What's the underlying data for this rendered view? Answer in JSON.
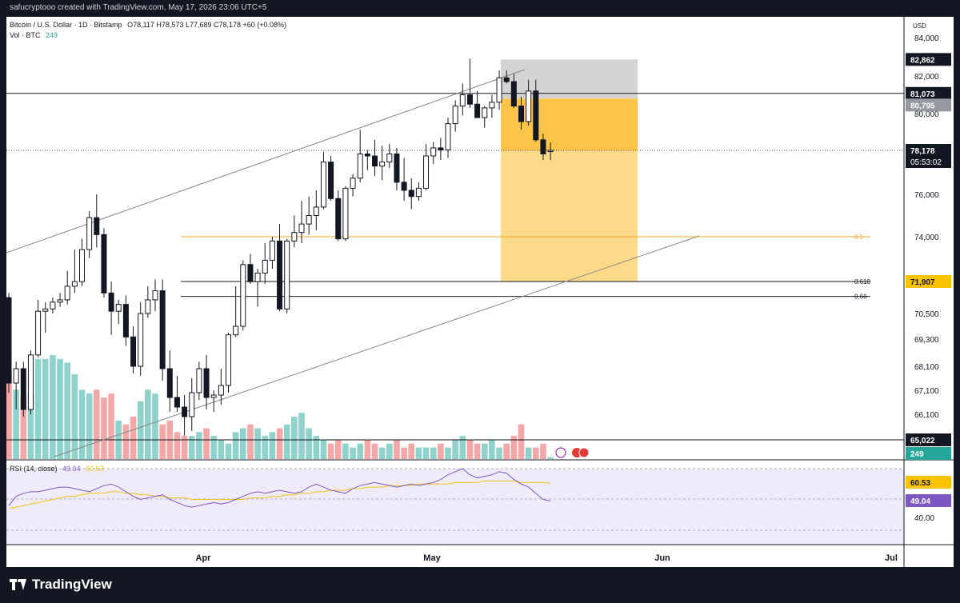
{
  "credit": "safucryptooo created with TradingView.com, May 17, 2026 23:06 UTC+5",
  "header": {
    "symbol": "Bitcoin / U.S. Dollar · 1D · Bitstamp",
    "ohlc": "O78,117 H78,573 L77,689 C78,178 +60 (+0.08%)",
    "vol_label": "Vol · BTC",
    "vol_value": "249"
  },
  "rsi_legend": {
    "label": "RSI (14, close)",
    "rsi": "49.04",
    "ma": "60.53"
  },
  "brand": "TradingView",
  "chart_data": {
    "type": "candlestick",
    "currency": "USD",
    "price_ticks": [
      "84,000",
      "82,000",
      "80,000",
      "76,000",
      "74,000",
      "70,500",
      "69,300",
      "68,100",
      "67,100",
      "66,100"
    ],
    "rsi_ticks": [
      "40.00"
    ],
    "x_labels": [
      "Apr",
      "May",
      "Jun",
      "Jul"
    ],
    "price_badges": {
      "target_top": "82,862",
      "hline_81073": "81,073",
      "entry": "80,795",
      "last": "78,178",
      "countdown": "05:53:02",
      "stop_target": "71,907",
      "hline_65022": "65,022",
      "volume": "249",
      "rsi_ma": "60.53",
      "rsi": "49.04"
    },
    "fib_levels": [
      {
        "label": "0.5",
        "value": 74000,
        "color": "#f5a623"
      },
      {
        "label": "0.618",
        "value": 71907,
        "color": "#131722"
      },
      {
        "label": "0.66",
        "value": 71250,
        "color": "#131722"
      }
    ],
    "horizontal_lines": [
      81073,
      65022
    ],
    "position_tool": {
      "top": 82862,
      "entry": 80795,
      "bottom": 71907
    },
    "candles": [
      {
        "o": 71200,
        "h": 71400,
        "l": 67000,
        "c": 67400
      },
      {
        "o": 67400,
        "h": 68300,
        "l": 66300,
        "c": 68000
      },
      {
        "o": 68000,
        "h": 68300,
        "l": 66000,
        "c": 66300
      },
      {
        "o": 66300,
        "h": 68800,
        "l": 66100,
        "c": 68600
      },
      {
        "o": 68600,
        "h": 71100,
        "l": 68500,
        "c": 70600
      },
      {
        "o": 70600,
        "h": 71000,
        "l": 69600,
        "c": 70700
      },
      {
        "o": 70700,
        "h": 71200,
        "l": 70500,
        "c": 71000
      },
      {
        "o": 71000,
        "h": 71400,
        "l": 70800,
        "c": 71100
      },
      {
        "o": 71100,
        "h": 72400,
        "l": 70900,
        "c": 71700
      },
      {
        "o": 71700,
        "h": 73400,
        "l": 71400,
        "c": 71900
      },
      {
        "o": 71900,
        "h": 73900,
        "l": 71700,
        "c": 73400
      },
      {
        "o": 73400,
        "h": 75200,
        "l": 73000,
        "c": 74900
      },
      {
        "o": 74900,
        "h": 76000,
        "l": 73500,
        "c": 74100
      },
      {
        "o": 74100,
        "h": 74400,
        "l": 71200,
        "c": 71400
      },
      {
        "o": 71400,
        "h": 71900,
        "l": 69500,
        "c": 70600
      },
      {
        "o": 70600,
        "h": 71100,
        "l": 70000,
        "c": 70900
      },
      {
        "o": 70900,
        "h": 71300,
        "l": 69000,
        "c": 69400
      },
      {
        "o": 69400,
        "h": 69900,
        "l": 67800,
        "c": 68100
      },
      {
        "o": 68100,
        "h": 71000,
        "l": 67700,
        "c": 70500
      },
      {
        "o": 70500,
        "h": 71700,
        "l": 70300,
        "c": 71100
      },
      {
        "o": 71100,
        "h": 72000,
        "l": 70600,
        "c": 71500
      },
      {
        "o": 71500,
        "h": 72000,
        "l": 67500,
        "c": 68000
      },
      {
        "o": 68000,
        "h": 68800,
        "l": 66200,
        "c": 66800
      },
      {
        "o": 66800,
        "h": 67700,
        "l": 66200,
        "c": 66400
      },
      {
        "o": 66400,
        "h": 66900,
        "l": 65200,
        "c": 66000
      },
      {
        "o": 66000,
        "h": 67600,
        "l": 65400,
        "c": 67000
      },
      {
        "o": 67000,
        "h": 68300,
        "l": 66700,
        "c": 68000
      },
      {
        "o": 68000,
        "h": 68600,
        "l": 66300,
        "c": 66800
      },
      {
        "o": 66800,
        "h": 67100,
        "l": 66200,
        "c": 66900
      },
      {
        "o": 66900,
        "h": 68000,
        "l": 66500,
        "c": 67300
      },
      {
        "o": 67300,
        "h": 69600,
        "l": 67000,
        "c": 69500
      },
      {
        "o": 69500,
        "h": 71700,
        "l": 69400,
        "c": 69900
      },
      {
        "o": 69900,
        "h": 72900,
        "l": 69700,
        "c": 72700
      },
      {
        "o": 72700,
        "h": 73200,
        "l": 71800,
        "c": 71900
      },
      {
        "o": 71900,
        "h": 72500,
        "l": 70800,
        "c": 72300
      },
      {
        "o": 72300,
        "h": 73700,
        "l": 71800,
        "c": 72900
      },
      {
        "o": 72900,
        "h": 74000,
        "l": 72500,
        "c": 73800
      },
      {
        "o": 73800,
        "h": 74600,
        "l": 70600,
        "c": 70700
      },
      {
        "o": 70700,
        "h": 73900,
        "l": 70500,
        "c": 73800
      },
      {
        "o": 73800,
        "h": 75000,
        "l": 73500,
        "c": 74200
      },
      {
        "o": 74200,
        "h": 75700,
        "l": 73700,
        "c": 74600
      },
      {
        "o": 74600,
        "h": 75900,
        "l": 74100,
        "c": 75000
      },
      {
        "o": 75000,
        "h": 76200,
        "l": 74300,
        "c": 75400
      },
      {
        "o": 75400,
        "h": 78100,
        "l": 75300,
        "c": 77600
      },
      {
        "o": 77600,
        "h": 77900,
        "l": 75700,
        "c": 75800
      },
      {
        "o": 75800,
        "h": 76200,
        "l": 73800,
        "c": 73900
      },
      {
        "o": 73900,
        "h": 76400,
        "l": 73800,
        "c": 76300
      },
      {
        "o": 76300,
        "h": 77000,
        "l": 75900,
        "c": 76800
      },
      {
        "o": 76800,
        "h": 79200,
        "l": 76600,
        "c": 78000
      },
      {
        "o": 78000,
        "h": 78200,
        "l": 77200,
        "c": 77900
      },
      {
        "o": 77900,
        "h": 78700,
        "l": 76900,
        "c": 77400
      },
      {
        "o": 77400,
        "h": 78400,
        "l": 76700,
        "c": 77600
      },
      {
        "o": 77600,
        "h": 78500,
        "l": 77300,
        "c": 78000
      },
      {
        "o": 78000,
        "h": 78300,
        "l": 76200,
        "c": 76600
      },
      {
        "o": 76600,
        "h": 77800,
        "l": 75700,
        "c": 76200
      },
      {
        "o": 76200,
        "h": 76800,
        "l": 75300,
        "c": 75900
      },
      {
        "o": 75900,
        "h": 76600,
        "l": 75700,
        "c": 76300
      },
      {
        "o": 76300,
        "h": 78500,
        "l": 76200,
        "c": 77900
      },
      {
        "o": 77900,
        "h": 78600,
        "l": 77500,
        "c": 78300
      },
      {
        "o": 78300,
        "h": 78800,
        "l": 77700,
        "c": 78200
      },
      {
        "o": 78200,
        "h": 79800,
        "l": 77800,
        "c": 79500
      },
      {
        "o": 79500,
        "h": 80700,
        "l": 79100,
        "c": 80400
      },
      {
        "o": 80400,
        "h": 81600,
        "l": 79900,
        "c": 81000
      },
      {
        "o": 81000,
        "h": 82900,
        "l": 80300,
        "c": 80500
      },
      {
        "o": 80500,
        "h": 81200,
        "l": 79800,
        "c": 79800
      },
      {
        "o": 79800,
        "h": 80400,
        "l": 79300,
        "c": 80300
      },
      {
        "o": 80300,
        "h": 81000,
        "l": 79800,
        "c": 80600
      },
      {
        "o": 80600,
        "h": 82300,
        "l": 80200,
        "c": 81900
      },
      {
        "o": 81900,
        "h": 82300,
        "l": 81600,
        "c": 81700
      },
      {
        "o": 81700,
        "h": 82100,
        "l": 80300,
        "c": 80400
      },
      {
        "o": 80400,
        "h": 80900,
        "l": 79200,
        "c": 79600
      },
      {
        "o": 79600,
        "h": 81800,
        "l": 79400,
        "c": 81200
      },
      {
        "o": 81200,
        "h": 81800,
        "l": 78600,
        "c": 78700
      },
      {
        "o": 78700,
        "h": 79000,
        "l": 77700,
        "c": 78000
      },
      {
        "o": 78117,
        "h": 78573,
        "l": 77689,
        "c": 78178
      }
    ],
    "volume": [
      22,
      18,
      16,
      17,
      26,
      26,
      27,
      26,
      25,
      22,
      18,
      17,
      18,
      16,
      17,
      10,
      9,
      11,
      15,
      18,
      17,
      9,
      10,
      7,
      6,
      6,
      7,
      8,
      6,
      5,
      4,
      7,
      8,
      9,
      8,
      6,
      7,
      8,
      9,
      11,
      12,
      8,
      6,
      5,
      4,
      5,
      4,
      3,
      4,
      5,
      4,
      3,
      4,
      5,
      3,
      4,
      3,
      3,
      3,
      4,
      3,
      5,
      6,
      5,
      4,
      4,
      5,
      3,
      4,
      6,
      9,
      3,
      3,
      4,
      0.5
    ],
    "rsi": [
      46,
      52,
      54,
      55,
      55,
      56,
      57,
      58,
      58,
      57,
      56,
      55,
      57,
      59,
      60,
      58,
      55,
      52,
      50,
      51,
      52,
      53,
      50,
      48,
      46,
      45,
      46,
      47,
      48,
      47,
      48,
      50,
      52,
      54,
      55,
      54,
      55,
      56,
      55,
      54,
      55,
      58,
      60,
      58,
      56,
      55,
      54,
      57,
      59,
      60,
      61,
      60,
      59,
      58,
      59,
      60,
      59,
      60,
      61,
      63,
      66,
      68,
      70,
      66,
      64,
      65,
      66,
      68,
      67,
      63,
      60,
      58,
      54,
      50,
      49.04
    ],
    "rsi_ma": [
      44,
      45,
      46,
      47,
      48,
      49,
      50,
      51,
      52,
      52,
      53,
      54,
      54,
      54,
      55,
      55,
      54,
      54,
      53,
      53,
      52,
      52,
      51,
      51,
      51,
      50,
      50,
      50,
      50,
      50,
      50,
      50,
      50,
      51,
      51,
      51,
      52,
      52,
      53,
      53,
      54,
      54,
      55,
      55,
      56,
      56,
      56,
      57,
      57,
      58,
      58,
      58,
      59,
      59,
      59,
      59,
      60,
      60,
      60,
      60,
      60,
      61,
      61,
      61,
      61,
      62,
      62,
      62,
      62,
      62,
      61,
      61,
      61,
      61,
      60.53
    ]
  }
}
